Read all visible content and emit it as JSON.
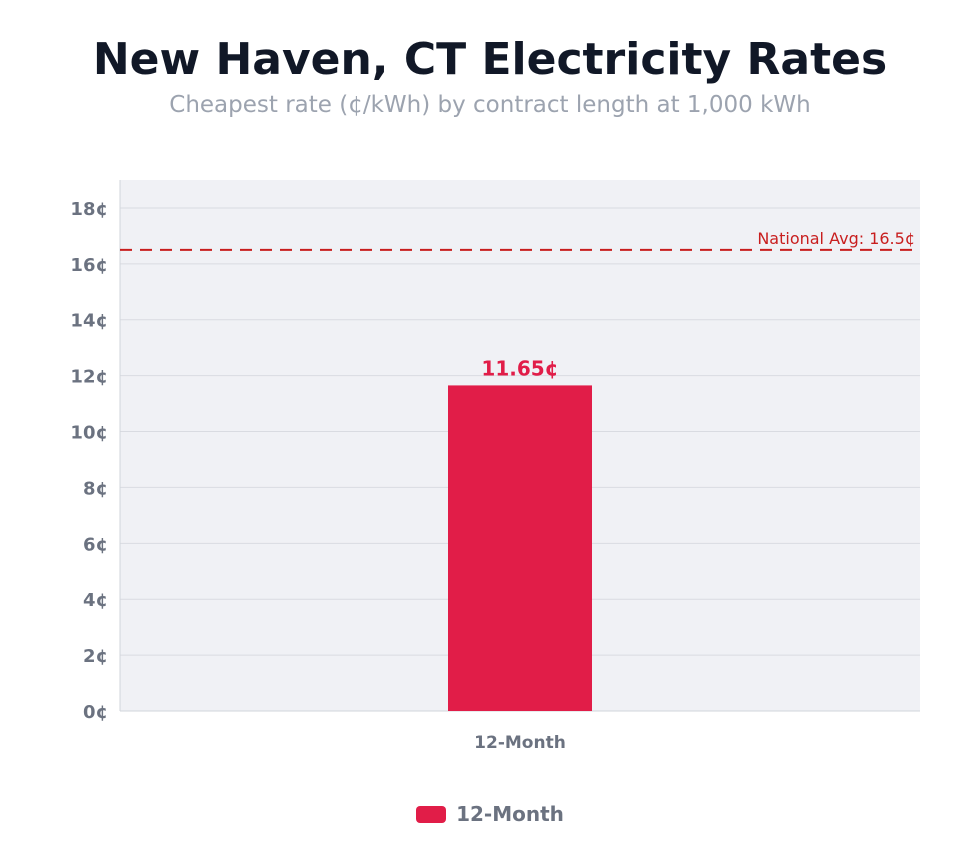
{
  "chart_data": {
    "type": "bar",
    "title": "New Haven, CT Electricity Rates",
    "subtitle": "Cheapest rate (¢/kWh) by contract length at 1,000 kWh",
    "categories": [
      "12-Month"
    ],
    "series": [
      {
        "name": "12-Month",
        "values": [
          11.65
        ],
        "value_labels": [
          "11.65¢"
        ]
      }
    ],
    "ylim": [
      0,
      19
    ],
    "yticks": [
      0,
      2,
      4,
      6,
      8,
      10,
      12,
      14,
      16,
      18
    ],
    "ytick_labels": [
      "0¢",
      "2¢",
      "4¢",
      "6¢",
      "8¢",
      "10¢",
      "12¢",
      "14¢",
      "16¢",
      "18¢"
    ],
    "grid": true,
    "legend": "bottom-center",
    "reference_line": {
      "value": 16.5,
      "label": "National Avg: 16.5¢",
      "color": "#c81e1e",
      "style": "dashed"
    },
    "colors": {
      "bar": "#e11d48",
      "plot_background": "#f0f1f5",
      "grid": "#d9dbe1",
      "axis_text": "#6b7280"
    }
  }
}
